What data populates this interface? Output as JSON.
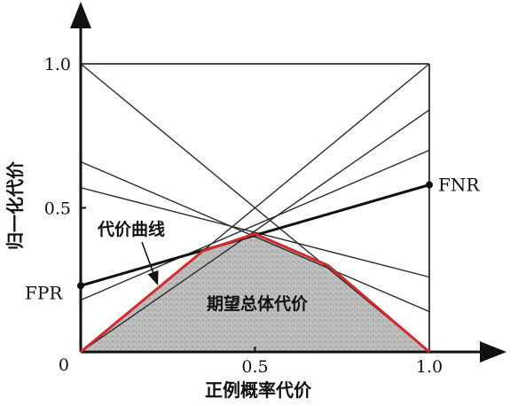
{
  "chart_data": {
    "type": "line",
    "xlabel": "正例概率代价",
    "ylabel": "归一化代价",
    "xlim": [
      0,
      1.0
    ],
    "ylim": [
      0,
      1.0
    ],
    "x_ticks": [
      "0.5",
      "1.0"
    ],
    "y_ticks": [
      "0.5",
      "1.0"
    ],
    "origin_label": "0",
    "fpr_label": "FPR",
    "fnr_label": "FNR",
    "curve_label": "代价曲线",
    "area_label": "期望总体代价",
    "highlight": {
      "fpr": 0.23,
      "fnr": 0.58
    },
    "cost_lines": [
      {
        "fpr": 0.0,
        "fnr": 1.0
      },
      {
        "fpr": 1.0,
        "fnr": 0.0
      },
      {
        "fpr": 0.66,
        "fnr": 0.14
      },
      {
        "fpr": 0.57,
        "fnr": 0.26
      },
      {
        "fpr": 0.23,
        "fnr": 0.58
      },
      {
        "fpr": 0.18,
        "fnr": 0.7
      },
      {
        "fpr": 0.0,
        "fnr": 0.84
      }
    ],
    "lower_envelope": [
      {
        "x": 0.0,
        "y": 0.0
      },
      {
        "x": 0.35,
        "y": 0.35
      },
      {
        "x": 0.5,
        "y": 0.41
      },
      {
        "x": 0.71,
        "y": 0.3
      },
      {
        "x": 1.0,
        "y": 0.0
      }
    ],
    "colors": {
      "envelope": "#d42a2a",
      "area": "#b6b6b6",
      "lines": "#2a2a2a"
    }
  }
}
